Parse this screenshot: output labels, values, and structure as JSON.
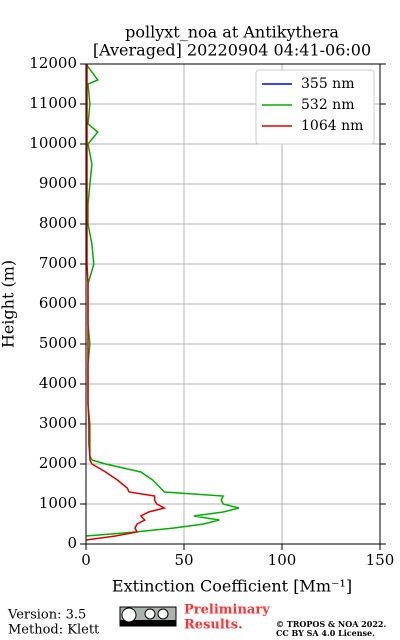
{
  "chart_data": {
    "type": "line",
    "title": "pollyxt_noa at Antikythera",
    "subtitle": "[Averaged] 20220904 04:41-06:00",
    "x_label": "Extinction Coefficient [Mm⁻¹]",
    "y_label": "Height (m)",
    "xlim": [
      0,
      150
    ],
    "xticks": [
      0,
      50,
      100,
      150
    ],
    "ylim": [
      0,
      12000
    ],
    "yticks": [
      0,
      1000,
      2000,
      3000,
      4000,
      5000,
      6000,
      7000,
      8000,
      9000,
      10000,
      11000,
      12000
    ],
    "grid": true,
    "legend": "upper right",
    "heights": [
      100,
      200,
      300,
      400,
      500,
      600,
      700,
      800,
      900,
      1000,
      1100,
      1200,
      1300,
      1400,
      1600,
      1800,
      2000,
      2100,
      2200,
      2500,
      3000,
      3500,
      4000,
      4500,
      5000,
      5500,
      6000,
      6500,
      7000,
      7500,
      8000,
      8500,
      9000,
      9500,
      10000,
      10300,
      10500,
      11000,
      11500,
      11600,
      12000
    ],
    "series": [
      {
        "name": "355 nm",
        "color": "#0000ff",
        "values": [
          null,
          null,
          null,
          null,
          null,
          null,
          null,
          null,
          null,
          null,
          null,
          null,
          null,
          null,
          null,
          null,
          null,
          null,
          null,
          null,
          null,
          null,
          null,
          null,
          null,
          null,
          null,
          null,
          null,
          null,
          null,
          null,
          null,
          null,
          null,
          null,
          null,
          null,
          null,
          null,
          null
        ]
      },
      {
        "name": "532 nm",
        "color": "#00b000",
        "values": [
          null,
          0,
          25,
          45,
          60,
          68,
          55,
          70,
          78,
          70,
          69,
          70,
          40,
          38,
          34,
          28,
          10,
          3,
          2,
          2,
          2,
          1,
          1,
          1,
          2,
          1,
          1,
          1,
          4,
          3,
          1,
          1,
          2,
          3,
          1,
          6,
          1,
          2,
          1,
          6,
          0
        ]
      },
      {
        "name": "1064 nm",
        "color": "#dd0000",
        "values": [
          0,
          15,
          26,
          25,
          26,
          30,
          28,
          32,
          40,
          36,
          35,
          35,
          22,
          21,
          16,
          10,
          3,
          2,
          2,
          1.5,
          1.5,
          1,
          1,
          1,
          1,
          1,
          1,
          1,
          0.5,
          0.5,
          0.5,
          0.5,
          0.5,
          0.5,
          0.5,
          0.5,
          0.5,
          0.5,
          0.5,
          0.5,
          0.5
        ]
      }
    ]
  },
  "footer": {
    "version": "Version: 3.5",
    "method": "Method: Klett",
    "preliminary": "Preliminary",
    "results": "Results.",
    "copyright": "© TROPOS & NOA 2022.",
    "license": "CC BY SA 4.0 License."
  }
}
